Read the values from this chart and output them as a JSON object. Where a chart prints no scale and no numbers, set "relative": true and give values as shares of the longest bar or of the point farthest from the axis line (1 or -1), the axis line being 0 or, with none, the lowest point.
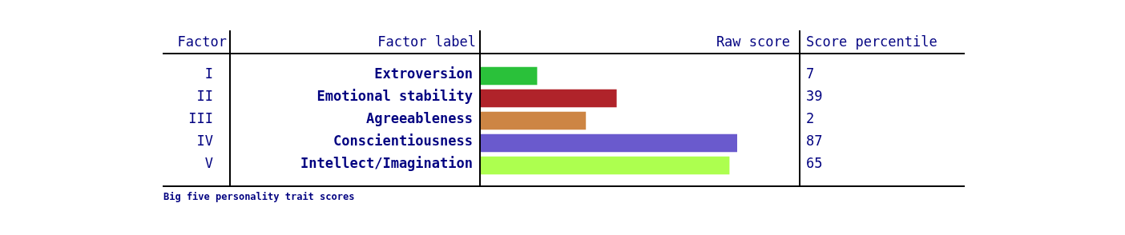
{
  "chart_data": {
    "type": "bar",
    "orientation": "horizontal",
    "relative": true,
    "ylabel": "Factor label",
    "xlabel": "Raw score",
    "categories": [
      "Extroversion",
      "Emotional stability",
      "Agreeableness",
      "Conscientiousness",
      "Intellect/Imagination"
    ],
    "values": [
      0.22,
      0.53,
      0.41,
      1,
      0.97
    ],
    "colors": [
      "#2ac13a",
      "#b0232a",
      "#cd8544",
      "#6a5acd",
      "#adff4f"
    ],
    "annotations": [
      "Factor",
      "Score percentile",
      "I",
      "II",
      "III",
      "IV",
      "V",
      "7",
      "39",
      "2",
      "87",
      "65",
      "Big five personality trait scores"
    ]
  }
}
